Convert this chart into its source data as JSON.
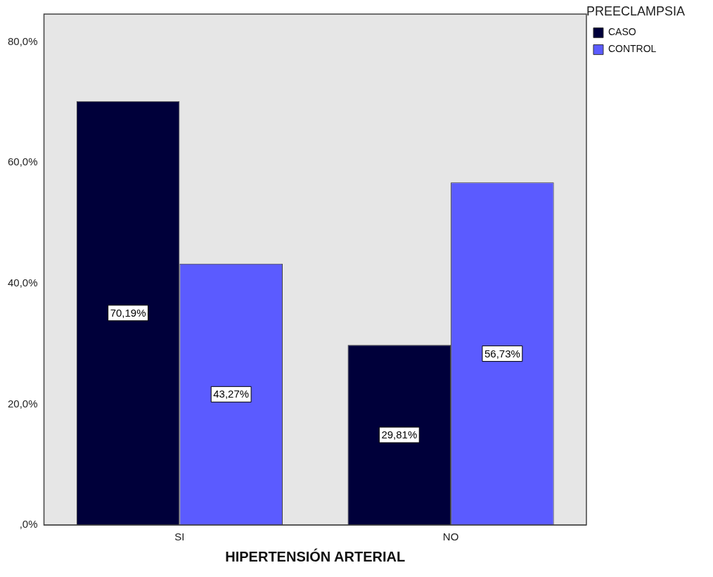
{
  "chart_data": {
    "type": "bar",
    "xlabel": "HIPERTENSIÓN ARTERIAL",
    "legend_title": "PREECLAMPSIA",
    "categories": [
      "SI",
      "NO"
    ],
    "series": [
      {
        "name": "CASO",
        "color": "#00003a",
        "values": [
          70.19,
          29.81
        ],
        "value_labels": [
          "70,19%",
          "29,81%"
        ]
      },
      {
        "name": "CONTROL",
        "color": "#5b5bff",
        "values": [
          43.27,
          56.73
        ],
        "value_labels": [
          "43,27%",
          "56,73%"
        ]
      }
    ],
    "ylim": [
      0,
      84.6
    ],
    "yticks": [
      {
        "value": 0,
        "label": ",0%"
      },
      {
        "value": 20,
        "label": "20,0%"
      },
      {
        "value": 40,
        "label": "40,0%"
      },
      {
        "value": 60,
        "label": "60,0%"
      },
      {
        "value": 80,
        "label": "80,0%"
      }
    ],
    "grid": false,
    "legend": "top right"
  }
}
